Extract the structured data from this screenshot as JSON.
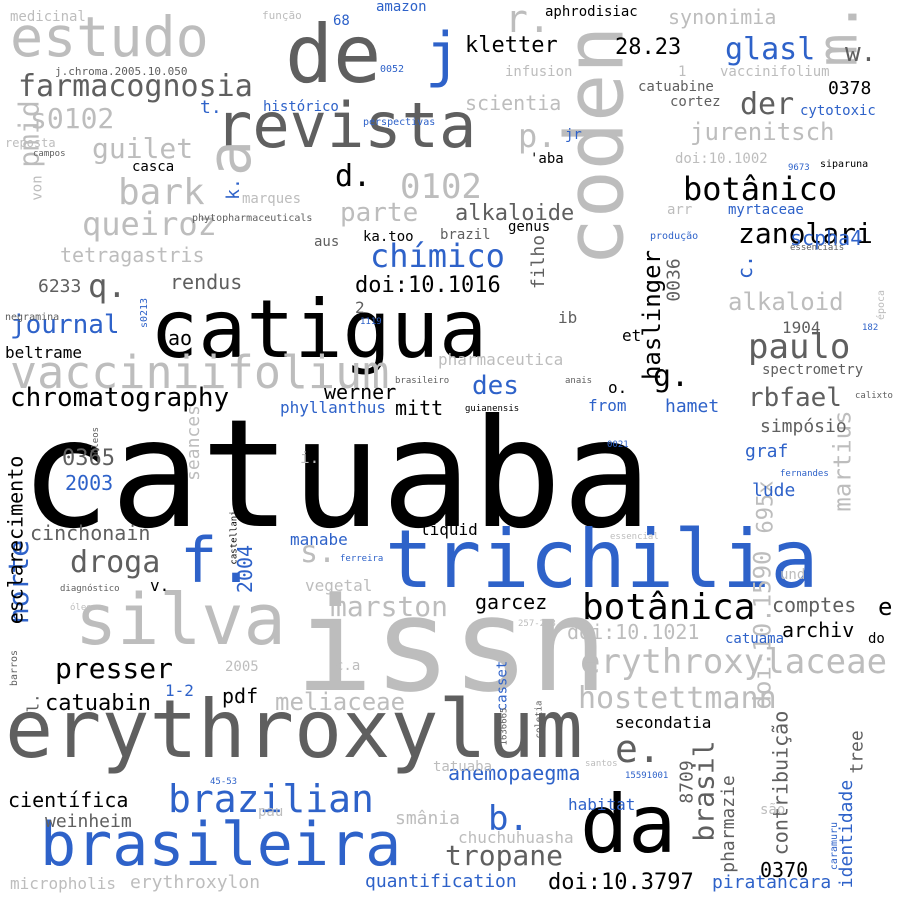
{
  "palette": {
    "black": "#000000",
    "dark": "#5f5f5f",
    "mid": "#8a8a8a",
    "light": "#bdbdbd",
    "blue": "#2e62c9"
  },
  "words": [
    {
      "t": "catuaba",
      "c": "black"
    },
    {
      "t": "issn",
      "c": "light"
    },
    {
      "t": "erythroxylum",
      "c": "dark"
    },
    {
      "t": "catigua",
      "c": "black"
    },
    {
      "t": "trichilia",
      "c": "blue"
    },
    {
      "t": "da",
      "c": "black"
    },
    {
      "t": "de",
      "c": "dark"
    },
    {
      "t": "coden",
      "c": "light"
    },
    {
      "t": "silva",
      "c": "light"
    },
    {
      "t": "brasileira",
      "c": "blue"
    },
    {
      "t": "revista",
      "c": "dark"
    },
    {
      "t": "a",
      "c": "light"
    },
    {
      "t": "estudo",
      "c": "light"
    },
    {
      "t": "j",
      "c": "blue"
    },
    {
      "t": "f.",
      "c": "blue"
    },
    {
      "t": "m.",
      "c": "light"
    },
    {
      "t": "vacciniifolium",
      "c": "light"
    },
    {
      "t": "brazilian",
      "c": "blue"
    },
    {
      "t": "botânica",
      "c": "black"
    },
    {
      "t": "botânico",
      "c": "black"
    },
    {
      "t": "erythroxylaceae",
      "c": "light"
    },
    {
      "t": "farmacognosia",
      "c": "dark"
    },
    {
      "t": "chímico",
      "c": "blue"
    },
    {
      "t": "paulo",
      "c": "dark"
    },
    {
      "t": "chromatography",
      "c": "black"
    },
    {
      "t": "hostettmann",
      "c": "light"
    },
    {
      "t": "zanolari",
      "c": "black"
    },
    {
      "t": "bark",
      "c": "light"
    },
    {
      "t": "queiroz",
      "c": "light"
    },
    {
      "t": "pmid",
      "c": "light"
    },
    {
      "t": "0102",
      "c": "light"
    },
    {
      "t": "presser",
      "c": "black"
    },
    {
      "t": "droga",
      "c": "dark"
    },
    {
      "t": "tropane",
      "c": "dark"
    },
    {
      "t": "der",
      "c": "dark"
    },
    {
      "t": "glasl",
      "c": "blue"
    },
    {
      "t": "s0102",
      "c": "light"
    },
    {
      "t": "guilet",
      "c": "light"
    },
    {
      "t": "d.",
      "c": "black"
    },
    {
      "t": "e.",
      "c": "dark"
    },
    {
      "t": "q.",
      "c": "dark"
    },
    {
      "t": "s.",
      "c": "light"
    },
    {
      "t": "g.",
      "c": "black"
    },
    {
      "t": "b.",
      "c": "blue"
    },
    {
      "t": "r.",
      "c": "light"
    },
    {
      "t": "p.",
      "c": "light"
    },
    {
      "t": "w.",
      "c": "dark"
    },
    {
      "t": "journal",
      "c": "blue"
    },
    {
      "t": "norte",
      "c": "blue"
    },
    {
      "t": "martius",
      "c": "light"
    },
    {
      "t": "haslinger",
      "c": "black"
    },
    {
      "t": "jurenitsch",
      "c": "light"
    },
    {
      "t": "brasil",
      "c": "dark"
    },
    {
      "t": "marston",
      "c": "light"
    },
    {
      "t": "des",
      "c": "blue"
    },
    {
      "t": "rbfael",
      "c": "dark"
    },
    {
      "t": "meliaceae",
      "c": "light"
    },
    {
      "t": "alkaloid",
      "c": "light"
    },
    {
      "t": "alkaloide",
      "c": "dark"
    },
    {
      "t": "parte",
      "c": "light"
    },
    {
      "t": "kletter",
      "c": "black"
    },
    {
      "t": "scientia",
      "c": "light"
    },
    {
      "t": "tetragastris",
      "c": "light"
    },
    {
      "t": "synonimia",
      "c": "light"
    },
    {
      "t": "doi:10.1016",
      "c": "black"
    },
    {
      "t": "doi:10.3797",
      "c": "black"
    },
    {
      "t": "doi:10.1590",
      "c": "light"
    },
    {
      "t": "doi:10.1021",
      "c": "light"
    },
    {
      "t": "científica",
      "c": "black"
    },
    {
      "t": "anemopaegma",
      "c": "blue"
    },
    {
      "t": "weinheim",
      "c": "dark"
    },
    {
      "t": "smânia",
      "c": "light"
    },
    {
      "t": "garcez",
      "c": "black"
    },
    {
      "t": "werner",
      "c": "black"
    },
    {
      "t": "esclarecimento",
      "c": "black"
    },
    {
      "t": "catuabin",
      "c": "black"
    },
    {
      "t": "pdf",
      "c": "black"
    },
    {
      "t": "cinchonain",
      "c": "dark"
    },
    {
      "t": "695x",
      "c": "light"
    },
    {
      "t": "comptes",
      "c": "dark"
    },
    {
      "t": "e",
      "c": "black"
    },
    {
      "t": "archiv",
      "c": "black"
    },
    {
      "t": "0370",
      "c": "black"
    },
    {
      "t": "pharmazie",
      "c": "dark"
    },
    {
      "t": "identidade",
      "c": "blue"
    },
    {
      "t": "contribuição",
      "c": "dark"
    },
    {
      "t": "tree",
      "c": "dark"
    },
    {
      "t": "8709",
      "c": "dark"
    },
    {
      "t": "quantification",
      "c": "blue"
    },
    {
      "t": "piratancara",
      "c": "blue"
    },
    {
      "t": "erythroxylon",
      "c": "light"
    },
    {
      "t": "micropholis",
      "c": "light"
    },
    {
      "t": "chuchuhuasha",
      "c": "light"
    },
    {
      "t": "2004",
      "c": "blue"
    },
    {
      "t": "2003",
      "c": "blue"
    },
    {
      "t": "0365",
      "c": "dark"
    },
    {
      "t": "28.23",
      "c": "black"
    },
    {
      "t": "0378",
      "c": "black"
    },
    {
      "t": "mitt",
      "c": "black"
    },
    {
      "t": "filho",
      "c": "dark"
    },
    {
      "t": "0036",
      "c": "dark"
    },
    {
      "t": "1904",
      "c": "dark"
    },
    {
      "t": "ao",
      "c": "black"
    },
    {
      "t": "rendus",
      "c": "dark"
    },
    {
      "t": "6233",
      "c": "dark"
    },
    {
      "t": "beltrame",
      "c": "black"
    },
    {
      "t": "pharmaceutica",
      "c": "light"
    },
    {
      "t": "spectrometry",
      "c": "dark"
    },
    {
      "t": "simpósio",
      "c": "dark"
    },
    {
      "t": "hamet",
      "c": "blue"
    },
    {
      "t": "graf",
      "c": "blue"
    },
    {
      "t": "lude",
      "c": "blue"
    },
    {
      "t": "scpha4",
      "c": "blue"
    },
    {
      "t": "c.",
      "c": "blue"
    },
    {
      "t": "k.",
      "c": "blue"
    },
    {
      "t": "t.",
      "c": "blue"
    },
    {
      "t": "seances",
      "c": "light"
    },
    {
      "t": "vegetal",
      "c": "light"
    },
    {
      "t": "manabe",
      "c": "blue"
    },
    {
      "t": "liquid",
      "c": "black"
    },
    {
      "t": "secondatia",
      "c": "black"
    },
    {
      "t": "casset",
      "c": "blue"
    },
    {
      "t": "1-2",
      "c": "blue"
    },
    {
      "t": "catuama",
      "c": "blue"
    },
    {
      "t": "habitat",
      "c": "blue"
    },
    {
      "t": "from",
      "c": "blue"
    },
    {
      "t": "phyllanthus",
      "c": "blue"
    },
    {
      "t": "o.",
      "c": "black"
    },
    {
      "t": "et",
      "c": "black"
    },
    {
      "t": "ib",
      "c": "dark"
    },
    {
      "t": "2",
      "c": "dark"
    },
    {
      "t": "i.",
      "c": "light"
    },
    {
      "t": "v.",
      "c": "black"
    },
    {
      "t": "l.",
      "c": "dark"
    },
    {
      "t": "und",
      "c": "light"
    },
    {
      "t": "do",
      "c": "black"
    },
    {
      "t": "2005",
      "c": "light"
    },
    {
      "t": "c.a",
      "c": "light"
    },
    {
      "t": "pau",
      "c": "light"
    },
    {
      "t": "tatuaba",
      "c": "light"
    },
    {
      "t": "são",
      "c": "light"
    },
    {
      "t": "aphrodisiac",
      "c": "black"
    },
    {
      "t": "infusion",
      "c": "light"
    },
    {
      "t": "catuabine",
      "c": "dark"
    },
    {
      "t": "cortez",
      "c": "dark"
    },
    {
      "t": "vaccinifolium",
      "c": "light"
    },
    {
      "t": "cytotoxic",
      "c": "blue"
    },
    {
      "t": "doi:10.1002",
      "c": "light"
    },
    {
      "t": "histórico",
      "c": "blue"
    },
    {
      "t": "jr",
      "c": "blue"
    },
    {
      "t": "'aba",
      "c": "black"
    },
    {
      "t": "casca",
      "c": "black"
    },
    {
      "t": "marques",
      "c": "light"
    },
    {
      "t": "myrtaceae",
      "c": "blue"
    },
    {
      "t": "ka.too",
      "c": "black"
    },
    {
      "t": "brazil",
      "c": "dark"
    },
    {
      "t": "genus",
      "c": "black"
    },
    {
      "t": "aus",
      "c": "dark"
    },
    {
      "t": "arr",
      "c": "light"
    },
    {
      "t": "von",
      "c": "light"
    },
    {
      "t": "medicinal",
      "c": "light"
    },
    {
      "t": "amazon",
      "c": "blue"
    },
    {
      "t": "68",
      "c": "blue"
    },
    {
      "t": "função",
      "c": "light"
    },
    {
      "t": "j.chroma.2005.10.050",
      "c": "dark"
    },
    {
      "t": "0052",
      "c": "blue"
    },
    {
      "t": "perspectivas",
      "c": "blue"
    },
    {
      "t": "reposta",
      "c": "light"
    },
    {
      "t": "campos",
      "c": "dark"
    },
    {
      "t": "1",
      "c": "light"
    },
    {
      "t": "siparuna",
      "c": "black"
    },
    {
      "t": "9673",
      "c": "blue"
    },
    {
      "t": "phytopharmaceuticals",
      "c": "dark"
    },
    {
      "t": "produção",
      "c": "blue"
    },
    {
      "t": "essenciais",
      "c": "dark"
    },
    {
      "t": "época",
      "c": "light"
    },
    {
      "t": "negramina",
      "c": "dark"
    },
    {
      "t": "s0213",
      "c": "blue"
    },
    {
      "t": "1119",
      "c": "blue"
    },
    {
      "t": "182",
      "c": "blue"
    },
    {
      "t": "brasileiro",
      "c": "dark"
    },
    {
      "t": "anais",
      "c": "dark"
    },
    {
      "t": "guianensis",
      "c": "black"
    },
    {
      "t": "calixto",
      "c": "dark"
    },
    {
      "t": "óleos",
      "c": "dark"
    },
    {
      "t": "0021",
      "c": "blue"
    },
    {
      "t": "fernandes",
      "c": "blue"
    },
    {
      "t": "castellani",
      "c": "black"
    },
    {
      "t": "essencial",
      "c": "light"
    },
    {
      "t": "ferreira",
      "c": "blue"
    },
    {
      "t": "diagnóstico",
      "c": "dark"
    },
    {
      "t": "óleo",
      "c": "light"
    },
    {
      "t": "257-263",
      "c": "light"
    },
    {
      "t": "barros",
      "c": "dark"
    },
    {
      "t": "1636665",
      "c": "dark"
    },
    {
      "t": "coletia",
      "c": "dark"
    },
    {
      "t": "santos",
      "c": "light"
    },
    {
      "t": "45-53",
      "c": "blue"
    },
    {
      "t": "15591001",
      "c": "blue"
    },
    {
      "t": "caramuru",
      "c": "blue"
    }
  ]
}
